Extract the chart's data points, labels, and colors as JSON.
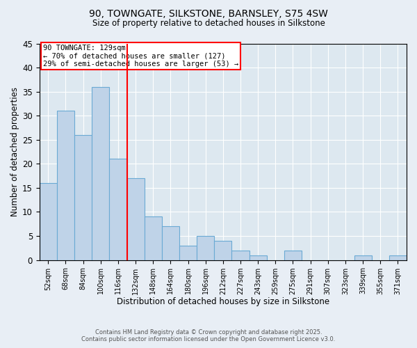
{
  "title1": "90, TOWNGATE, SILKSTONE, BARNSLEY, S75 4SW",
  "title2": "Size of property relative to detached houses in Silkstone",
  "xlabel": "Distribution of detached houses by size in Silkstone",
  "ylabel": "Number of detached properties",
  "categories": [
    "52sqm",
    "68sqm",
    "84sqm",
    "100sqm",
    "116sqm",
    "132sqm",
    "148sqm",
    "164sqm",
    "180sqm",
    "196sqm",
    "212sqm",
    "227sqm",
    "243sqm",
    "259sqm",
    "275sqm",
    "291sqm",
    "307sqm",
    "323sqm",
    "339sqm",
    "355sqm",
    "371sqm"
  ],
  "values": [
    16,
    31,
    26,
    36,
    21,
    17,
    9,
    7,
    3,
    5,
    4,
    2,
    1,
    0,
    2,
    0,
    0,
    0,
    1,
    0,
    1
  ],
  "bar_color": "#bfd3e8",
  "bar_edge_color": "#6aaad4",
  "vline_x": 4.5,
  "vline_color": "red",
  "annotation_text": "90 TOWNGATE: 129sqm\n← 70% of detached houses are smaller (127)\n29% of semi-detached houses are larger (53) →",
  "annotation_box_color": "white",
  "annotation_box_edge_color": "red",
  "ylim": [
    0,
    45
  ],
  "yticks": [
    0,
    5,
    10,
    15,
    20,
    25,
    30,
    35,
    40,
    45
  ],
  "footer1": "Contains HM Land Registry data © Crown copyright and database right 2025.",
  "footer2": "Contains public sector information licensed under the Open Government Licence v3.0.",
  "bg_color": "#e8eef5",
  "plot_bg_color": "#dde8f0"
}
